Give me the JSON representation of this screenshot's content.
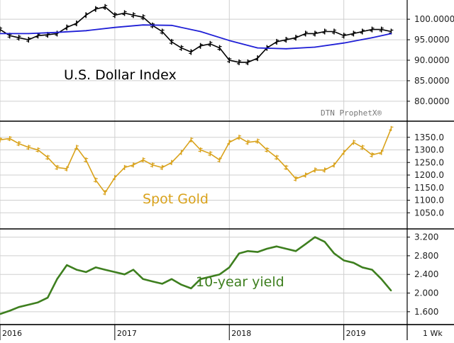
{
  "chart_data": [
    {
      "type": "line",
      "label": "U.S. Dollar Index",
      "watermark": "DTN ProphetX®",
      "ylim": [
        76,
        104
      ],
      "y_ticks": [
        "100.0000",
        "95.0000",
        "90.0000",
        "85.0000",
        "80.0000"
      ],
      "y_tick_values": [
        100,
        95,
        90,
        85,
        80
      ],
      "series": [
        {
          "style": "ohlc-bars",
          "color": "#000000",
          "x": [
            "2016-01-01",
            "2016-02-01",
            "2016-03-01",
            "2016-04-01",
            "2016-05-01",
            "2016-06-01",
            "2016-07-01",
            "2016-08-01",
            "2016-09-01",
            "2016-10-01",
            "2016-11-01",
            "2016-12-01",
            "2017-01-01",
            "2017-02-01",
            "2017-03-01",
            "2017-04-01",
            "2017-05-01",
            "2017-06-01",
            "2017-07-01",
            "2017-08-01",
            "2017-09-01",
            "2017-10-01",
            "2017-11-01",
            "2017-12-01",
            "2018-01-01",
            "2018-02-01",
            "2018-03-01",
            "2018-04-01",
            "2018-05-01",
            "2018-06-01",
            "2018-07-01",
            "2018-08-01",
            "2018-09-01",
            "2018-10-01",
            "2018-11-01",
            "2018-12-01",
            "2019-01-01",
            "2019-02-01",
            "2019-03-01",
            "2019-04-01",
            "2019-05-01",
            "2019-06-01"
          ],
          "values": [
            97.5,
            96.0,
            95.5,
            95.0,
            96.0,
            96.2,
            96.5,
            98.0,
            99.0,
            101.0,
            102.5,
            103.0,
            101.0,
            101.5,
            101.0,
            100.5,
            98.5,
            97.0,
            94.5,
            93.0,
            92.0,
            93.5,
            94.0,
            93.0,
            90.0,
            89.5,
            89.5,
            90.5,
            93.0,
            94.5,
            95.0,
            95.5,
            96.5,
            96.5,
            97.0,
            97.0,
            96.0,
            96.5,
            97.0,
            97.5,
            97.5,
            97.0
          ]
        },
        {
          "style": "moving-average",
          "color": "#1f1fd6",
          "x": [
            "2016-01-01",
            "2016-04-01",
            "2016-07-01",
            "2016-10-01",
            "2017-01-01",
            "2017-04-01",
            "2017-07-01",
            "2017-10-01",
            "2018-01-01",
            "2018-04-01",
            "2018-07-01",
            "2018-10-01",
            "2019-01-01",
            "2019-04-01",
            "2019-06-01"
          ],
          "values": [
            96.5,
            96.5,
            96.8,
            97.2,
            98.0,
            98.6,
            98.5,
            97.0,
            94.8,
            93.0,
            92.8,
            93.2,
            94.2,
            95.5,
            96.5
          ]
        }
      ]
    },
    {
      "type": "line",
      "label": "Spot Gold",
      "ylim": [
        1000,
        1400
      ],
      "y_ticks": [
        "1350.0",
        "1300.0",
        "1250.0",
        "1200.0",
        "1150.0",
        "1100.0",
        "1050.0"
      ],
      "y_tick_values": [
        1350,
        1300,
        1250,
        1200,
        1150,
        1100,
        1050
      ],
      "series": [
        {
          "style": "ohlc-bars",
          "color": "#d9a21b",
          "x": [
            "2016-01-01",
            "2016-02-01",
            "2016-03-01",
            "2016-04-01",
            "2016-05-01",
            "2016-06-01",
            "2016-07-01",
            "2016-08-01",
            "2016-09-01",
            "2016-10-01",
            "2016-11-01",
            "2016-12-01",
            "2017-01-01",
            "2017-02-01",
            "2017-03-01",
            "2017-04-01",
            "2017-05-01",
            "2017-06-01",
            "2017-07-01",
            "2017-08-01",
            "2017-09-01",
            "2017-10-01",
            "2017-11-01",
            "2017-12-01",
            "2018-01-01",
            "2018-02-01",
            "2018-03-01",
            "2018-04-01",
            "2018-05-01",
            "2018-06-01",
            "2018-07-01",
            "2018-08-01",
            "2018-09-01",
            "2018-10-01",
            "2018-11-01",
            "2018-12-01",
            "2019-01-01",
            "2019-02-01",
            "2019-03-01",
            "2019-04-01",
            "2019-05-01",
            "2019-06-01"
          ],
          "values": [
            1340,
            1345,
            1325,
            1310,
            1300,
            1270,
            1230,
            1225,
            1310,
            1260,
            1180,
            1130,
            1190,
            1230,
            1240,
            1260,
            1240,
            1230,
            1250,
            1290,
            1340,
            1300,
            1285,
            1260,
            1330,
            1350,
            1330,
            1335,
            1300,
            1270,
            1230,
            1185,
            1200,
            1220,
            1220,
            1240,
            1290,
            1330,
            1310,
            1280,
            1290,
            1385
          ]
        }
      ]
    },
    {
      "type": "line",
      "label": "10-year yield",
      "ylim": [
        1.4,
        3.3
      ],
      "y_ticks": [
        "3.200",
        "2.800",
        "2.400",
        "2.000",
        "1.600"
      ],
      "y_tick_values": [
        3.2,
        2.8,
        2.4,
        2.0,
        1.6
      ],
      "series": [
        {
          "style": "line",
          "color": "#3e7f1f",
          "x": [
            "2016-01-01",
            "2016-02-01",
            "2016-03-01",
            "2016-04-01",
            "2016-05-01",
            "2016-06-01",
            "2016-07-01",
            "2016-08-01",
            "2016-09-01",
            "2016-10-01",
            "2016-11-01",
            "2016-12-01",
            "2017-01-01",
            "2017-02-01",
            "2017-03-01",
            "2017-04-01",
            "2017-05-01",
            "2017-06-01",
            "2017-07-01",
            "2017-08-01",
            "2017-09-01",
            "2017-10-01",
            "2017-11-01",
            "2017-12-01",
            "2018-01-01",
            "2018-02-01",
            "2018-03-01",
            "2018-04-01",
            "2018-05-01",
            "2018-06-01",
            "2018-07-01",
            "2018-08-01",
            "2018-09-01",
            "2018-10-01",
            "2018-11-01",
            "2018-12-01",
            "2019-01-01",
            "2019-02-01",
            "2019-03-01",
            "2019-04-01",
            "2019-05-01",
            "2019-06-01"
          ],
          "values": [
            1.55,
            1.62,
            1.7,
            1.75,
            1.8,
            1.9,
            2.3,
            2.6,
            2.5,
            2.45,
            2.55,
            2.5,
            2.45,
            2.4,
            2.5,
            2.3,
            2.25,
            2.2,
            2.3,
            2.18,
            2.1,
            2.3,
            2.35,
            2.4,
            2.55,
            2.85,
            2.9,
            2.88,
            2.95,
            3.0,
            2.95,
            2.9,
            3.05,
            3.2,
            3.1,
            2.85,
            2.7,
            2.65,
            2.55,
            2.5,
            2.3,
            2.05
          ]
        }
      ]
    }
  ],
  "x_axis": {
    "type": "date",
    "range": [
      "2016-01-01",
      "2019-07-22"
    ],
    "tick_labels": [
      "2016",
      "2017",
      "2018",
      "2019"
    ],
    "tick_dates": [
      "2016-01-01",
      "2017-01-01",
      "2018-01-01",
      "2019-01-01"
    ],
    "interval_label": "1 Wk"
  },
  "grid": true,
  "colors": {
    "dollar": "#000000",
    "moving_average": "#1f1fd6",
    "gold": "#d9a21b",
    "yield": "#3e7f1f",
    "grid": "#cfcfcf"
  }
}
